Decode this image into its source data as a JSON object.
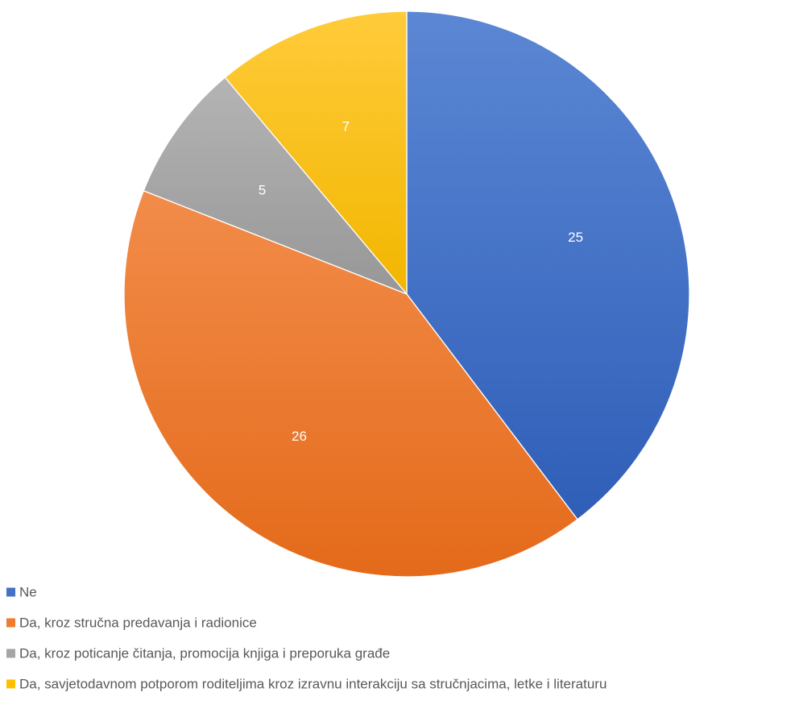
{
  "chart_data": {
    "type": "pie",
    "title": "",
    "start_angle_deg": 0,
    "direction": "clockwise",
    "slices": [
      {
        "label": "Ne",
        "value": 25,
        "color": "#4472C4",
        "color_light": "#5B87D4",
        "color_dark": "#2F5EB8"
      },
      {
        "label": "Da, kroz stručna predavanja i radionice",
        "value": 26,
        "color": "#ED7D31",
        "color_light": "#F28C4A",
        "color_dark": "#E46A1A"
      },
      {
        "label": "Da, kroz poticanje čitanja, promocija knjiga i preporuka građe",
        "value": 5,
        "color": "#A5A5A5",
        "color_light": "#B4B4B4",
        "color_dark": "#979797"
      },
      {
        "label": "Da, savjetodavnom potporom roditeljima kroz izravnu interakciju sa stručnjacima, letke i literaturu",
        "value": 7,
        "color": "#FFC000",
        "color_light": "#FFCB3A",
        "color_dark": "#F2B600"
      }
    ],
    "data_labels": true,
    "data_label_color": "#FFFFFF",
    "legend_position": "bottom-left"
  }
}
